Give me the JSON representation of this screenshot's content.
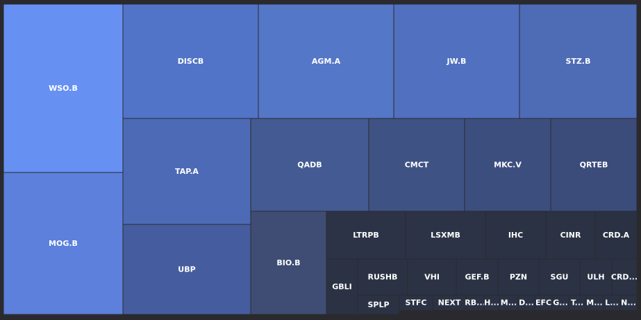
{
  "chart_data": {
    "type": "treemap",
    "nodes": [
      {
        "name": "WSO.B",
        "value": 2.37
      },
      {
        "name": "MOG.B",
        "value": 2.25
      },
      {
        "name": "DISCB",
        "value": 1.8
      },
      {
        "name": "AGM.A",
        "value": 1.8
      },
      {
        "name": "JW.B",
        "value": 1.66
      },
      {
        "name": "STZ.B",
        "value": 1.53
      },
      {
        "name": "TAP.A",
        "value": 1.56
      },
      {
        "name": "UBP",
        "value": 1.4
      },
      {
        "name": "QADB",
        "value": 1.0
      },
      {
        "name": "CMCT",
        "value": 0.82
      },
      {
        "name": "MKC.V",
        "value": 0.73
      },
      {
        "name": "QRTEB",
        "value": 0.73
      },
      {
        "name": "BIO.B",
        "value": 0.96
      },
      {
        "name": "LTRPB",
        "value": 0.35
      },
      {
        "name": "LSXMB",
        "value": 0.35
      },
      {
        "name": "IHC",
        "value": 0.26
      },
      {
        "name": "CINR",
        "value": 0.21
      },
      {
        "name": "CRD.A",
        "value": 0.18
      },
      {
        "name": "GBLI",
        "value": 0.18
      },
      {
        "name": "RUSHB",
        "value": 0.13
      },
      {
        "name": "VHI",
        "value": 0.13
      },
      {
        "name": "GEF.B",
        "value": 0.12
      },
      {
        "name": "PZN",
        "value": 0.12
      },
      {
        "name": "SGU",
        "value": 0.12
      },
      {
        "name": "ULH",
        "value": 0.09
      },
      {
        "name": "CRD...",
        "value": 0.07
      },
      {
        "name": "SPLP",
        "value": 0.08
      },
      {
        "name": "STFC",
        "value": 0.07
      },
      {
        "name": "NEXT",
        "value": 0.07
      },
      {
        "name": "RB...",
        "value": 0.04
      },
      {
        "name": "H...",
        "value": 0.03
      },
      {
        "name": "M...",
        "value": 0.04
      },
      {
        "name": "D...",
        "value": 0.03
      },
      {
        "name": "EFC",
        "value": 0.04
      },
      {
        "name": "G...",
        "value": 0.03
      },
      {
        "name": "T...",
        "value": 0.03
      },
      {
        "name": "M...",
        "value": 0.03
      },
      {
        "name": "L...",
        "value": 0.03
      },
      {
        "name": "N...",
        "value": 0.03
      }
    ]
  },
  "colors": {
    "background": "#2a2a2e",
    "border": "#2a2a2e",
    "label": "#ffffff"
  }
}
